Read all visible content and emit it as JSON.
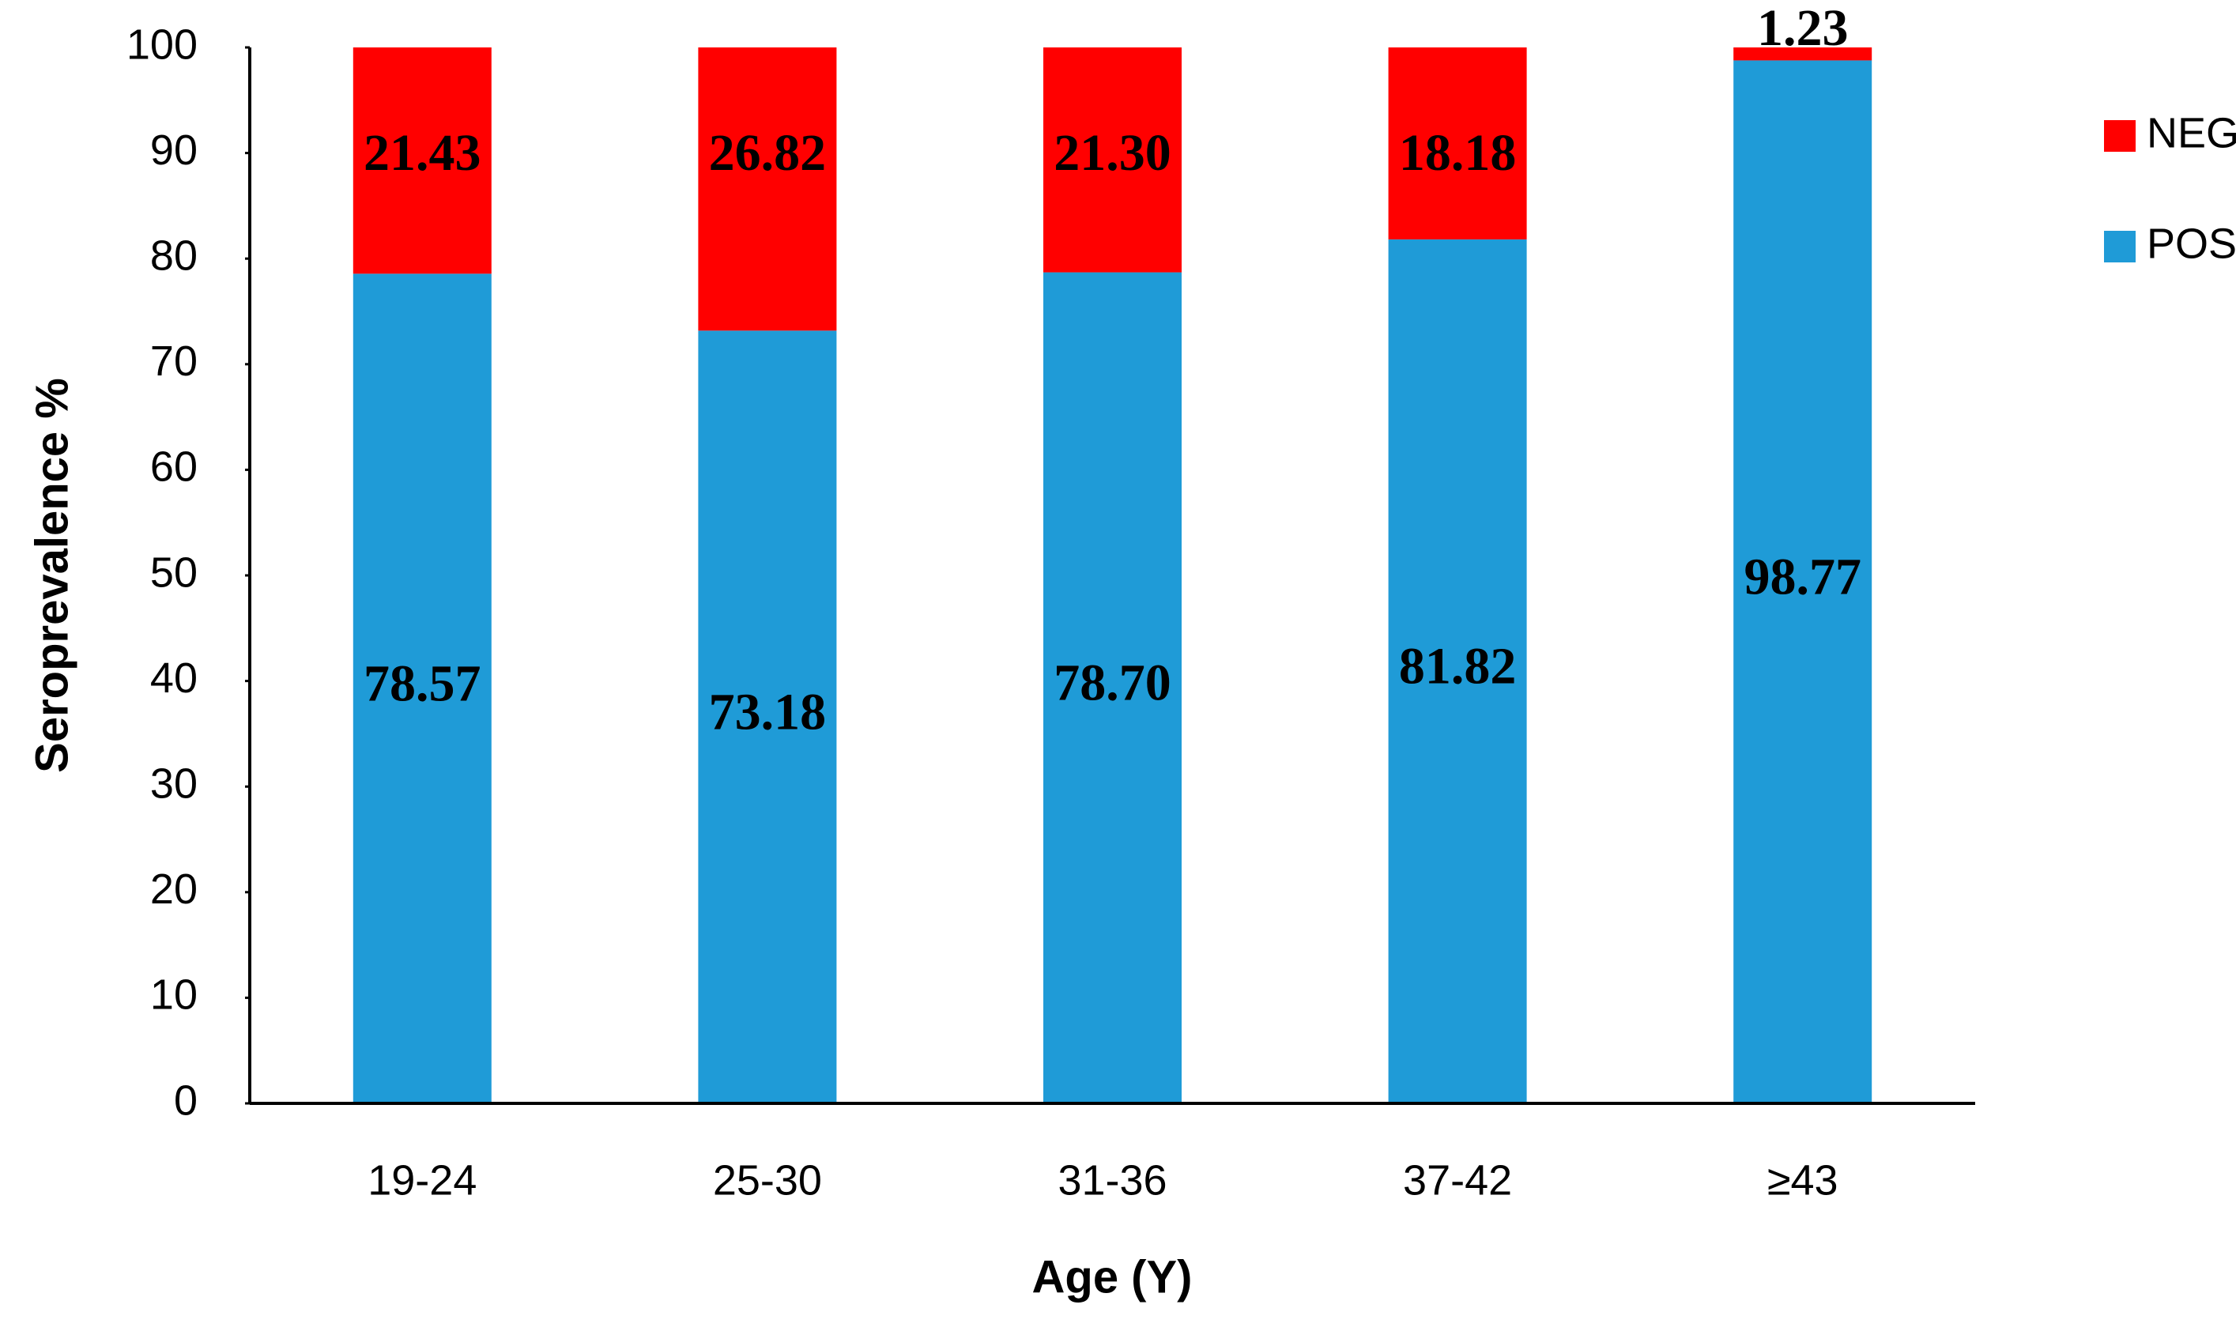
{
  "chart_data": {
    "type": "stacked_bar",
    "x_label": "Age (Y)",
    "y_label": "Seroprevalence %",
    "categories": [
      "19-24",
      "25-30",
      "31-36",
      "37-42",
      "≥43"
    ],
    "series": [
      {
        "name": "POS",
        "color": "#1f9bd7",
        "values": [
          78.57,
          73.18,
          78.7,
          81.82,
          98.77
        ],
        "value_labels": [
          "78.57",
          "73.18",
          "78.70",
          "81.82",
          "98.77"
        ]
      },
      {
        "name": "NEG",
        "color": "#ff0000",
        "values": [
          21.43,
          26.82,
          21.3,
          18.18,
          1.23
        ],
        "value_labels": [
          "21.43",
          "26.82",
          "21.30",
          "18.18",
          "1.23"
        ]
      }
    ],
    "ylim": [
      0,
      100
    ],
    "yticks": [
      0,
      10,
      20,
      30,
      40,
      50,
      60,
      70,
      80,
      90,
      100
    ],
    "grid": false,
    "legend": "right"
  }
}
